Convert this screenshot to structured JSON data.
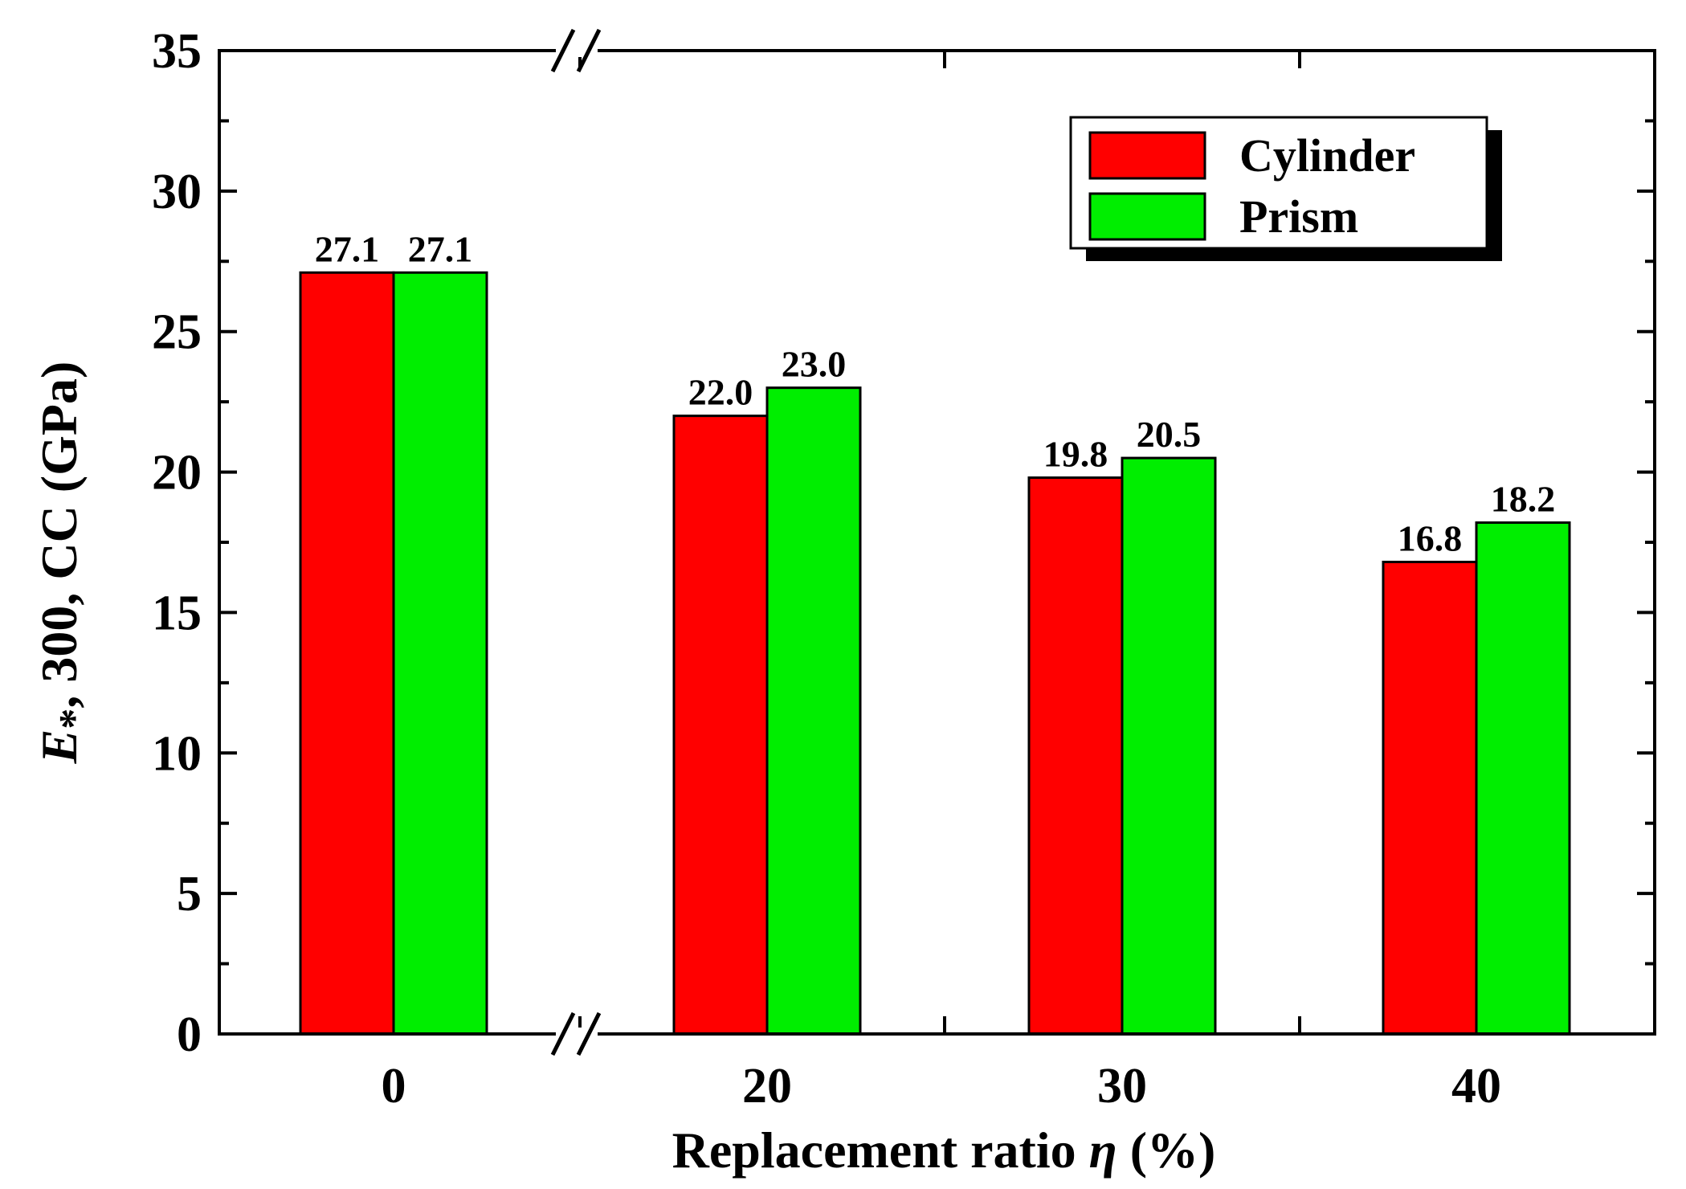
{
  "chart_data": {
    "type": "bar",
    "categories": [
      "0",
      "20",
      "30",
      "40"
    ],
    "series": [
      {
        "name": "Cylinder",
        "color": "#ff0000",
        "values": [
          27.1,
          22.0,
          19.8,
          16.8
        ],
        "labels": [
          "27.1",
          "22.0",
          "19.8",
          "16.8"
        ]
      },
      {
        "name": "Prism",
        "color": "#00ee00",
        "values": [
          27.1,
          23.0,
          20.5,
          18.2
        ],
        "labels": [
          "27.1",
          "23.0",
          "20.5",
          "18.2"
        ]
      }
    ],
    "xlabel": {
      "pre": "Replacement ratio ",
      "italic": "η",
      "post": " (%)"
    },
    "ylabel": {
      "italic": "E",
      "sub": "*",
      "post": ", 300, CC (GPa)"
    },
    "ylim": [
      0,
      35
    ],
    "yticks": [
      "0",
      "5",
      "10",
      "15",
      "20",
      "25",
      "30",
      "35"
    ],
    "axis_break": "between 0 and 20",
    "legend_position": "top-right"
  }
}
